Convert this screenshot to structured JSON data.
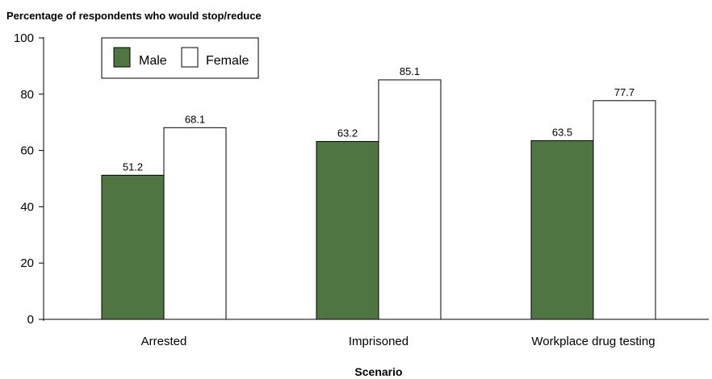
{
  "chart_data": {
    "type": "bar",
    "ylabel": "Percentage of respondents who would stop/reduce",
    "xlabel": "Scenario",
    "categories": [
      "Arrested",
      "Imprisoned",
      "Workplace drug testing"
    ],
    "series": [
      {
        "name": "Male",
        "values": [
          51.2,
          63.2,
          63.5
        ],
        "color": "#4f7542"
      },
      {
        "name": "Female",
        "values": [
          68.1,
          85.1,
          77.7
        ],
        "color": "#ffffff"
      }
    ],
    "data_labels": [
      [
        "51.2",
        "63.2",
        "63.5"
      ],
      [
        "68.1",
        "85.1",
        "77.7"
      ]
    ],
    "ylim": [
      0,
      100
    ],
    "yticks": [
      0,
      20,
      40,
      60,
      80,
      100
    ],
    "ytick_labels": [
      "0",
      "20",
      "40",
      "60",
      "80",
      "100"
    ],
    "grid": false,
    "legend_position": "top-left"
  }
}
